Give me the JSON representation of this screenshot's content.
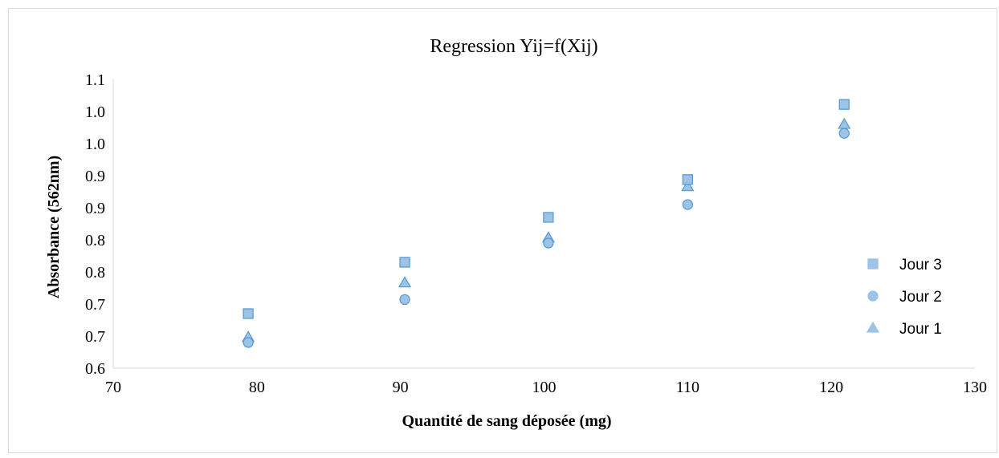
{
  "chart_data": {
    "type": "scatter",
    "title": "Regression  Yij=f(Xij)",
    "xlabel": "Quantité de sang déposée (mg)",
    "ylabel": "Absorbance   (562nm)",
    "xlim": [
      70,
      130
    ],
    "ylim": [
      0.6,
      1.05
    ],
    "x_ticks": [
      70,
      80,
      90,
      100,
      110,
      120,
      130
    ],
    "y_tick_values": [
      0.6,
      0.65,
      0.7,
      0.75,
      0.8,
      0.85,
      0.9,
      0.95,
      1.0,
      1.05
    ],
    "y_tick_labels": [
      "0.6",
      "0.7",
      "0.7",
      "0.8",
      "0.8",
      "0.9",
      "0.9",
      "1.0",
      "1.0",
      "1.1"
    ],
    "grid": false,
    "legend_position": "right",
    "series": [
      {
        "name": "Jour 3",
        "marker": "square",
        "color": "#9dc3e6",
        "stroke": "#5b9bd5",
        "x": [
          79.4,
          90.3,
          100.3,
          110.0,
          120.9
        ],
        "y": [
          0.685,
          0.765,
          0.835,
          0.894,
          1.011
        ]
      },
      {
        "name": "Jour 2",
        "marker": "circle",
        "color": "#9dc3e6",
        "stroke": "#5b9bd5",
        "x": [
          79.4,
          90.3,
          100.3,
          110.0,
          120.9
        ],
        "y": [
          0.64,
          0.707,
          0.795,
          0.855,
          0.966
        ]
      },
      {
        "name": "Jour 1",
        "marker": "triangle",
        "color": "#9dc3e6",
        "stroke": "#5b9bd5",
        "x": [
          79.4,
          90.3,
          100.3,
          110.0,
          120.9
        ],
        "y": [
          0.648,
          0.733,
          0.803,
          0.883,
          0.98
        ]
      }
    ]
  }
}
